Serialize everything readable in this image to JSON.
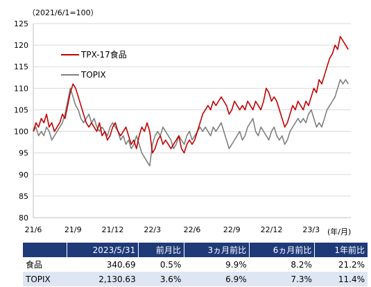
{
  "chart_data": {
    "type": "line",
    "unit_label": "（2021/6/1=100）",
    "x_unit_label": "(年/月)",
    "ylim": [
      80,
      125
    ],
    "y_ticks": [
      80,
      85,
      90,
      95,
      100,
      105,
      110,
      115,
      120,
      125
    ],
    "x_tick_labels": [
      "21/6",
      "21/9",
      "21/12",
      "22/3",
      "22/6",
      "22/9",
      "22/12",
      "23/3"
    ],
    "x_tick_positions": [
      0,
      3,
      6,
      9,
      12,
      15,
      18,
      21
    ],
    "x_range": [
      0,
      24
    ],
    "grid": "horizontal",
    "legend_placement": "top-left",
    "series": [
      {
        "name": "TPX-17食品",
        "color": "#c00000",
        "points": [
          [
            0.0,
            100
          ],
          [
            0.2,
            102
          ],
          [
            0.4,
            101
          ],
          [
            0.6,
            103
          ],
          [
            0.8,
            102
          ],
          [
            1.0,
            104
          ],
          [
            1.2,
            101
          ],
          [
            1.4,
            102
          ],
          [
            1.6,
            100
          ],
          [
            1.8,
            101
          ],
          [
            2.0,
            102
          ],
          [
            2.2,
            104
          ],
          [
            2.4,
            103
          ],
          [
            2.6,
            106
          ],
          [
            2.8,
            109
          ],
          [
            3.0,
            111
          ],
          [
            3.2,
            110
          ],
          [
            3.4,
            108
          ],
          [
            3.6,
            106
          ],
          [
            3.8,
            104
          ],
          [
            4.0,
            102
          ],
          [
            4.2,
            101
          ],
          [
            4.4,
            102
          ],
          [
            4.6,
            101
          ],
          [
            4.8,
            100
          ],
          [
            5.0,
            102
          ],
          [
            5.2,
            99
          ],
          [
            5.4,
            100
          ],
          [
            5.6,
            98
          ],
          [
            5.8,
            99
          ],
          [
            6.0,
            101
          ],
          [
            6.2,
            102
          ],
          [
            6.4,
            100
          ],
          [
            6.6,
            99
          ],
          [
            6.8,
            100
          ],
          [
            7.0,
            101
          ],
          [
            7.2,
            99
          ],
          [
            7.4,
            97
          ],
          [
            7.6,
            98
          ],
          [
            7.8,
            96
          ],
          [
            8.0,
            99
          ],
          [
            8.2,
            101
          ],
          [
            8.4,
            100
          ],
          [
            8.6,
            102
          ],
          [
            8.8,
            100
          ],
          [
            9.0,
            95
          ],
          [
            9.2,
            96
          ],
          [
            9.4,
            98
          ],
          [
            9.6,
            99
          ],
          [
            9.8,
            97
          ],
          [
            10.0,
            98
          ],
          [
            10.2,
            97
          ],
          [
            10.4,
            96
          ],
          [
            10.6,
            97
          ],
          [
            10.8,
            98
          ],
          [
            11.0,
            99
          ],
          [
            11.2,
            96
          ],
          [
            11.4,
            95
          ],
          [
            11.6,
            97
          ],
          [
            11.8,
            98
          ],
          [
            12.0,
            97
          ],
          [
            12.2,
            98
          ],
          [
            12.4,
            100
          ],
          [
            12.6,
            102
          ],
          [
            12.8,
            104
          ],
          [
            13.0,
            105
          ],
          [
            13.2,
            106
          ],
          [
            13.4,
            105
          ],
          [
            13.6,
            107
          ],
          [
            13.8,
            106
          ],
          [
            14.0,
            107
          ],
          [
            14.2,
            108
          ],
          [
            14.4,
            107
          ],
          [
            14.6,
            106
          ],
          [
            14.8,
            104
          ],
          [
            15.0,
            105
          ],
          [
            15.2,
            107
          ],
          [
            15.4,
            106
          ],
          [
            15.6,
            105
          ],
          [
            15.8,
            106
          ],
          [
            16.0,
            105
          ],
          [
            16.2,
            107
          ],
          [
            16.4,
            106
          ],
          [
            16.6,
            105
          ],
          [
            16.8,
            107
          ],
          [
            17.0,
            106
          ],
          [
            17.2,
            105
          ],
          [
            17.4,
            107
          ],
          [
            17.6,
            110
          ],
          [
            17.8,
            109
          ],
          [
            18.0,
            107
          ],
          [
            18.2,
            108
          ],
          [
            18.4,
            107
          ],
          [
            18.6,
            105
          ],
          [
            18.8,
            103
          ],
          [
            19.0,
            101
          ],
          [
            19.2,
            102
          ],
          [
            19.4,
            104
          ],
          [
            19.6,
            106
          ],
          [
            19.8,
            105
          ],
          [
            20.0,
            107
          ],
          [
            20.2,
            106
          ],
          [
            20.4,
            105
          ],
          [
            20.6,
            107
          ],
          [
            20.8,
            106
          ],
          [
            21.0,
            108
          ],
          [
            21.2,
            110
          ],
          [
            21.4,
            109
          ],
          [
            21.6,
            112
          ],
          [
            21.8,
            111
          ],
          [
            22.0,
            113
          ],
          [
            22.2,
            115
          ],
          [
            22.4,
            117
          ],
          [
            22.6,
            118
          ],
          [
            22.8,
            120
          ],
          [
            23.0,
            119
          ],
          [
            23.2,
            122
          ],
          [
            23.4,
            121
          ],
          [
            23.6,
            120
          ],
          [
            23.8,
            119
          ]
        ]
      },
      {
        "name": "TOPIX",
        "color": "#7f7f7f",
        "points": [
          [
            0.0,
            100
          ],
          [
            0.2,
            101
          ],
          [
            0.4,
            99
          ],
          [
            0.6,
            100
          ],
          [
            0.8,
            99
          ],
          [
            1.0,
            101
          ],
          [
            1.2,
            100
          ],
          [
            1.4,
            98
          ],
          [
            1.6,
            99
          ],
          [
            1.8,
            100
          ],
          [
            2.0,
            101
          ],
          [
            2.2,
            102
          ],
          [
            2.4,
            104
          ],
          [
            2.6,
            107
          ],
          [
            2.8,
            110
          ],
          [
            3.0,
            108
          ],
          [
            3.2,
            106
          ],
          [
            3.4,
            105
          ],
          [
            3.6,
            103
          ],
          [
            3.8,
            102
          ],
          [
            4.0,
            103
          ],
          [
            4.2,
            104
          ],
          [
            4.4,
            102
          ],
          [
            4.6,
            103
          ],
          [
            4.8,
            101
          ],
          [
            5.0,
            100
          ],
          [
            5.2,
            101
          ],
          [
            5.4,
            100
          ],
          [
            5.6,
            99
          ],
          [
            5.8,
            101
          ],
          [
            6.0,
            102
          ],
          [
            6.2,
            101
          ],
          [
            6.4,
            100
          ],
          [
            6.6,
            98
          ],
          [
            6.8,
            99
          ],
          [
            7.0,
            97
          ],
          [
            7.2,
            98
          ],
          [
            7.4,
            96
          ],
          [
            7.6,
            97
          ],
          [
            7.8,
            99
          ],
          [
            8.0,
            97
          ],
          [
            8.2,
            95
          ],
          [
            8.4,
            94
          ],
          [
            8.6,
            93
          ],
          [
            8.8,
            92
          ],
          [
            9.0,
            97
          ],
          [
            9.2,
            99
          ],
          [
            9.4,
            100
          ],
          [
            9.6,
            99
          ],
          [
            9.8,
            101
          ],
          [
            10.0,
            100
          ],
          [
            10.2,
            99
          ],
          [
            10.4,
            98
          ],
          [
            10.6,
            96
          ],
          [
            10.8,
            97
          ],
          [
            11.0,
            99
          ],
          [
            11.2,
            98
          ],
          [
            11.4,
            97
          ],
          [
            11.6,
            99
          ],
          [
            11.8,
            100
          ],
          [
            12.0,
            98
          ],
          [
            12.2,
            99
          ],
          [
            12.4,
            100
          ],
          [
            12.6,
            101
          ],
          [
            12.8,
            100
          ],
          [
            13.0,
            101
          ],
          [
            13.2,
            100
          ],
          [
            13.4,
            99
          ],
          [
            13.6,
            101
          ],
          [
            13.8,
            100
          ],
          [
            14.0,
            101
          ],
          [
            14.2,
            102
          ],
          [
            14.4,
            100
          ],
          [
            14.6,
            98
          ],
          [
            14.8,
            96
          ],
          [
            15.0,
            97
          ],
          [
            15.2,
            98
          ],
          [
            15.4,
            99
          ],
          [
            15.6,
            100
          ],
          [
            15.8,
            98
          ],
          [
            16.0,
            99
          ],
          [
            16.2,
            101
          ],
          [
            16.4,
            102
          ],
          [
            16.6,
            103
          ],
          [
            16.8,
            100
          ],
          [
            17.0,
            99
          ],
          [
            17.2,
            101
          ],
          [
            17.4,
            100
          ],
          [
            17.6,
            99
          ],
          [
            17.8,
            98
          ],
          [
            18.0,
            100
          ],
          [
            18.2,
            101
          ],
          [
            18.4,
            99
          ],
          [
            18.6,
            98
          ],
          [
            18.8,
            99
          ],
          [
            19.0,
            97
          ],
          [
            19.2,
            98
          ],
          [
            19.4,
            100
          ],
          [
            19.6,
            101
          ],
          [
            19.8,
            102
          ],
          [
            20.0,
            103
          ],
          [
            20.2,
            102
          ],
          [
            20.4,
            103
          ],
          [
            20.6,
            102
          ],
          [
            20.8,
            104
          ],
          [
            21.0,
            105
          ],
          [
            21.2,
            103
          ],
          [
            21.4,
            101
          ],
          [
            21.6,
            102
          ],
          [
            21.8,
            101
          ],
          [
            22.0,
            103
          ],
          [
            22.2,
            105
          ],
          [
            22.4,
            106
          ],
          [
            22.6,
            107
          ],
          [
            22.8,
            108
          ],
          [
            23.0,
            110
          ],
          [
            23.2,
            112
          ],
          [
            23.4,
            111
          ],
          [
            23.6,
            112
          ],
          [
            23.8,
            111
          ]
        ]
      }
    ]
  },
  "table": {
    "headers": [
      "",
      "2023/5/31",
      "前月比",
      "3ヵ月前比",
      "6ヵ月前比",
      "1年前比"
    ],
    "rows": [
      {
        "name": "食品",
        "values": [
          "340.69",
          "0.5%",
          "9.9%",
          "8.2%",
          "21.2%"
        ]
      },
      {
        "name": "TOPIX",
        "values": [
          "2,130.63",
          "3.6%",
          "6.9%",
          "7.3%",
          "11.4%"
        ]
      }
    ]
  }
}
